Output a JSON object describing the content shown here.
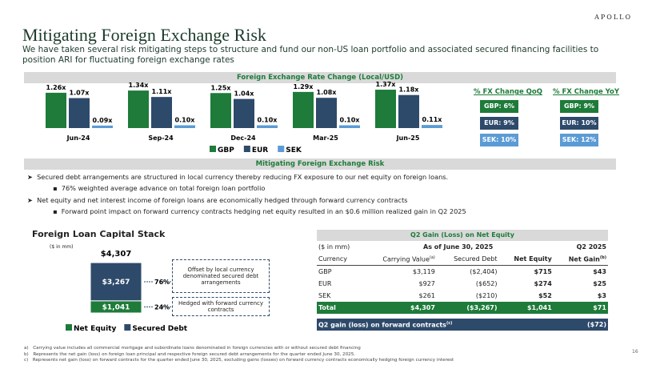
{
  "header": {
    "brand": "APOLLO",
    "title": "Mitigating Foreign Exchange Risk",
    "subtitle": "We have taken several risk mitigating steps to structure and fund our non-US loan portfolio and associated secured financing facilities to position ARI for fluctuating foreign exchange rates"
  },
  "chart_data": [
    {
      "type": "bar",
      "title": "Foreign Exchange Rate Change (Local/USD)",
      "categories": [
        "Jun-24",
        "Sep-24",
        "Dec-24",
        "Mar-25",
        "Jun-25"
      ],
      "series": [
        {
          "name": "GBP",
          "color": "#1e7b3a",
          "values": [
            1.26,
            1.34,
            1.25,
            1.29,
            1.37
          ],
          "value_labels": [
            "1.26x",
            "1.34x",
            "1.25x",
            "1.29x",
            "1.37x"
          ]
        },
        {
          "name": "EUR",
          "color": "#2e4a6b",
          "values": [
            1.07,
            1.11,
            1.04,
            1.08,
            1.18
          ],
          "value_labels": [
            "1.07x",
            "1.11x",
            "1.04x",
            "1.08x",
            "1.18x"
          ]
        },
        {
          "name": "SEK",
          "color": "#5b9bd5",
          "values": [
            0.09,
            0.1,
            0.1,
            0.1,
            0.11
          ],
          "value_labels": [
            "0.09x",
            "0.10x",
            "0.10x",
            "0.10x",
            "0.11x"
          ]
        }
      ]
    },
    {
      "type": "stacked-bar",
      "title": "Foreign Loan Capital Stack",
      "subtitle": "($ in mm)",
      "series": [
        {
          "name": "Net Equity",
          "color": "#1e7b3a",
          "values": [
            1041
          ],
          "value_labels": [
            "$1,041"
          ]
        },
        {
          "name": "Secured Debt",
          "color": "#2e4a6b",
          "values": [
            3267
          ],
          "value_labels": [
            "$3,267"
          ]
        }
      ],
      "total": {
        "value": 4307,
        "label": "$4,307"
      },
      "share_labels": [
        "24%",
        "76%"
      ],
      "annotations": [
        "Hedged with forward currency contracts",
        "Offset by local currency denominated secured debt arrangements"
      ]
    }
  ],
  "fx_change": [
    {
      "title": "% FX Change QoQ",
      "items": [
        "GBP:  6%",
        "EUR:  9%",
        "SEK:  10%"
      ]
    },
    {
      "title": "% FX Change YoY",
      "items": [
        "GBP:  9%",
        "EUR:  10%",
        "SEK:  12%"
      ]
    }
  ],
  "risk": {
    "title": "Mitigating Foreign Exchange Risk",
    "bullets": [
      {
        "text": "Secured debt arrangements are structured in local currency thereby reducing FX exposure to our net equity on foreign loans.",
        "sub": "76% weighted average advance on total foreign loan portfolio"
      },
      {
        "text": "Net equity and net interest income of foreign loans are economically hedged through forward currency contracts",
        "sub": "Forward point impact on forward currency contracts hedging net equity resulted in an $0.6 million realized gain in Q2 2025"
      }
    ]
  },
  "table": {
    "title": "Q2 Gain (Loss) on Net Equity",
    "group_headers": [
      "($ in mm)",
      "As of June 30, 2025",
      "Q2 2025"
    ],
    "headers": [
      "Currency",
      "Carrying Value",
      "Secured Debt",
      "Net Equity",
      "Net Gain"
    ],
    "header_notes": {
      "carrying": "(a)",
      "gain": "(b)"
    },
    "rows": [
      [
        "GBP",
        "$3,119",
        "($2,404)",
        "$715",
        "$43"
      ],
      [
        "EUR",
        "$927",
        "($652)",
        "$274",
        "$25"
      ],
      [
        "SEK",
        "$261",
        "($210)",
        "$52",
        "$3"
      ]
    ],
    "total": [
      "Total",
      "$4,307",
      "($3,267)",
      "$1,041",
      "$71"
    ],
    "forward": {
      "label": "Q2 gain (loss) on forward contracts",
      "note": "(c)",
      "value": "($72)"
    }
  },
  "footnotes": [
    "a) Carrying value includes all commercial mortgage and subordinate loans denominated in foreign currencies with or without secured debt financing",
    "b) Represents the net gain (loss) on foreign loan principal and respective foreign secured debt arrangements for the quarter ended June 30, 2025.",
    "c) Represents net gain (loss) on forward contracts for the quarter ended June 30, 2025, excluding gains (losses) on forward currency contracts economically hedging foreign currency interest"
  ],
  "page_number": "16"
}
